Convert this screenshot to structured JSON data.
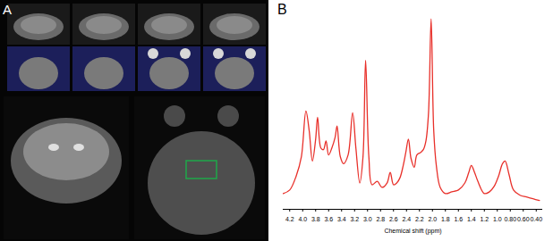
{
  "images": {
    "label": "A"
  },
  "chart_data": {
    "type": "line",
    "title": "B",
    "x_label": "Chemical shift (ppm)",
    "x": [
      4.3,
      4.2,
      4.1,
      4.02,
      3.95,
      3.9,
      3.85,
      3.8,
      3.77,
      3.72,
      3.68,
      3.64,
      3.6,
      3.55,
      3.5,
      3.47,
      3.42,
      3.37,
      3.3,
      3.23,
      3.18,
      3.12,
      3.07,
      3.03,
      2.98,
      2.93,
      2.85,
      2.78,
      2.7,
      2.65,
      2.6,
      2.55,
      2.5,
      2.45,
      2.41,
      2.37,
      2.33,
      2.28,
      2.24,
      2.18,
      2.14,
      2.1,
      2.06,
      2.02,
      1.98,
      1.94,
      1.88,
      1.8,
      1.7,
      1.6,
      1.5,
      1.44,
      1.4,
      1.35,
      1.3,
      1.2,
      1.12,
      1.05,
      0.98,
      0.92,
      0.88,
      0.82,
      0.75,
      0.65,
      0.55,
      0.45,
      0.35
    ],
    "values": [
      18,
      22,
      38,
      60,
      112,
      90,
      55,
      80,
      105,
      70,
      68,
      78,
      62,
      70,
      82,
      95,
      60,
      52,
      62,
      110,
      70,
      30,
      60,
      170,
      60,
      28,
      32,
      25,
      30,
      42,
      28,
      30,
      36,
      50,
      65,
      80,
      58,
      48,
      62,
      65,
      68,
      78,
      110,
      217,
      90,
      50,
      25,
      18,
      20,
      22,
      30,
      42,
      50,
      42,
      32,
      18,
      20,
      26,
      38,
      52,
      55,
      40,
      22,
      16,
      14,
      12,
      10
    ],
    "color": "#e8302a",
    "xlim": [
      4.3,
      0.3
    ],
    "xticks": [
      4.2,
      {
        "value": 4,
        "label": "4.0"
      },
      3.8,
      3.6,
      3.4,
      3.2,
      {
        "value": 3,
        "label": "3.0"
      },
      2.8,
      2.6,
      2.4,
      2.2,
      {
        "value": 2,
        "label": "2.0"
      },
      1.8,
      1.6,
      1.4,
      1.2,
      {
        "value": 1,
        "label": "1.0"
      },
      {
        "value": 0.8,
        "label": "0.80"
      },
      {
        "value": 0.6,
        "label": "0.60"
      },
      {
        "value": 0.4,
        "label": "0.40"
      }
    ],
    "ylim": [
      0,
      230
    ],
    "tick_labels": "x",
    "grid": false
  }
}
